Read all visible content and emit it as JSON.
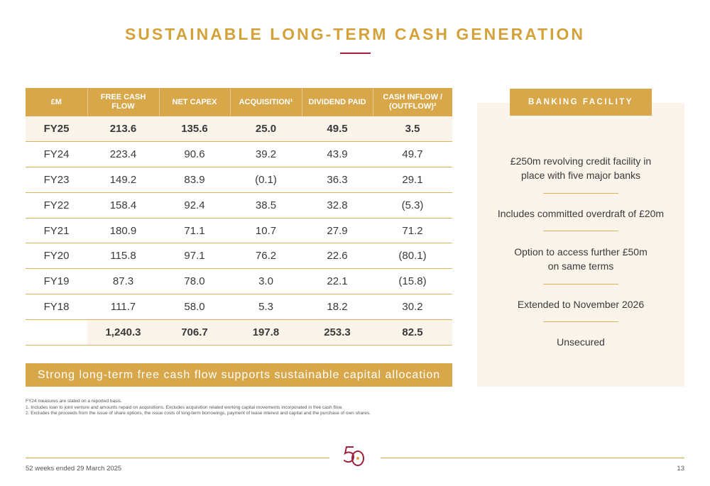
{
  "page": {
    "title": "SUSTAINABLE LONG-TERM CASH GENERATION"
  },
  "table": {
    "headers": [
      "£M",
      "FREE CASH FLOW",
      "NET CAPEX",
      "ACQUISITION¹",
      "DIVIDEND PAID",
      "CASH INFLOW / (OUTFLOW)²"
    ],
    "rows": [
      [
        "FY25",
        "213.6",
        "135.6",
        "25.0",
        "49.5",
        "3.5"
      ],
      [
        "FY24",
        "223.4",
        "90.6",
        "39.2",
        "43.9",
        "49.7"
      ],
      [
        "FY23",
        "149.2",
        "83.9",
        "(0.1)",
        "36.3",
        "29.1"
      ],
      [
        "FY22",
        "158.4",
        "92.4",
        "38.5",
        "32.8",
        "(5.3)"
      ],
      [
        "FY21",
        "180.9",
        "71.1",
        "10.7",
        "27.9",
        "71.2"
      ],
      [
        "FY20",
        "115.8",
        "97.1",
        "76.2",
        "22.6",
        "(80.1)"
      ],
      [
        "FY19",
        "87.3",
        "78.0",
        "3.0",
        "22.1",
        "(15.8)"
      ],
      [
        "FY18",
        "111.7",
        "58.0",
        "5.3",
        "18.2",
        "30.2"
      ]
    ],
    "totals": [
      "",
      "1,240.3",
      "706.7",
      "197.8",
      "253.3",
      "82.5"
    ]
  },
  "banner": {
    "text": "Strong long-term free cash flow supports sustainable capital allocation"
  },
  "notes": [
    "FY24 measures are stated on a reported basis.",
    "1.   Includes loan to joint venture and amounts repaid on acquisitions. Excludes acquisition related working capital movements incorporated in free cash flow.",
    "2.   Excludes the proceeds from the issue of share options, the issue costs of long-term borrowings, payment of lease interest and capital and the purchase of own shares."
  ],
  "banking": {
    "header": "BANKING FACILITY",
    "items": [
      {
        "line1": "£250m revolving credit facility in",
        "line2": "place with five major banks"
      },
      {
        "line1": "Includes committed overdraft of £20m",
        "line2": ""
      },
      {
        "line1": "Option to access further £50m",
        "line2": "on same terms"
      },
      {
        "line1": "Extended to November 2026",
        "line2": ""
      },
      {
        "line1": "Unsecured",
        "line2": ""
      }
    ]
  },
  "footer": {
    "date": "52 weeks ended 29 March 2025",
    "page_number": "13",
    "logo_text": "50"
  },
  "colors": {
    "gold": "#d8a74a",
    "title_gold": "#d3a23a",
    "crimson": "#a0213b",
    "cream": "#faf4ea"
  }
}
